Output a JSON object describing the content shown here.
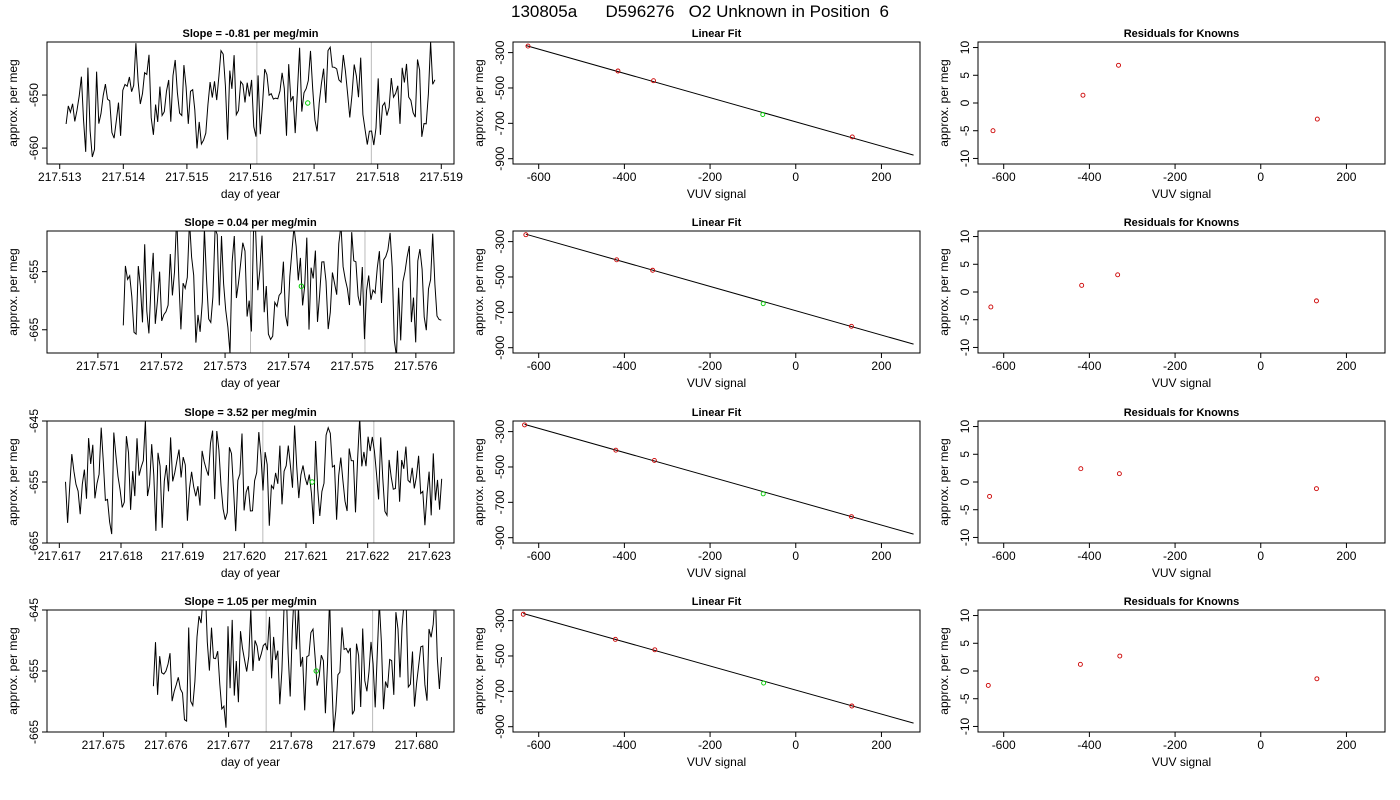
{
  "page": {
    "title": "130805a      D596276   O2 Unknown in Position  6"
  },
  "colors": {
    "trace": "#000000",
    "marker_unknown": "#00cc00",
    "marker_known": "#cc0000",
    "guide_line": "#bbbbbb",
    "axis": "#000000"
  },
  "chart_data": [
    {
      "type": "line",
      "title": "Slope =  -0.81  per meg/min",
      "xlabel": "day of year",
      "ylabel": "approx. per meg",
      "xlim": [
        217.5128,
        217.5192
      ],
      "ylim": [
        -663,
        -640
      ],
      "xticks": [
        217.513,
        217.514,
        217.515,
        217.516,
        217.517,
        217.518,
        217.519
      ],
      "xtick_decimals": 3,
      "yticks": [
        -650,
        -660
      ],
      "ytick_labels": [
        "-650",
        "-660"
      ],
      "vlines": [
        217.5161,
        217.5179
      ],
      "marker": {
        "x": 217.5169,
        "y": -651.5
      },
      "trace": {
        "x_start": 217.5131,
        "x_end": 217.5189,
        "mean": -650,
        "amplitude": 11,
        "seed": 11,
        "points": 170
      }
    },
    {
      "type": "scatter",
      "title": "Linear Fit",
      "xlabel": "VUV signal",
      "ylabel": "approx. per meg",
      "xlim": [
        -660,
        290
      ],
      "ylim": [
        -930,
        -240
      ],
      "xticks": [
        -600,
        -400,
        -200,
        0,
        200
      ],
      "xtick_labels": [
        "-600",
        "-400",
        "-200",
        "0",
        "200"
      ],
      "yticks": [
        -300,
        -500,
        -700,
        -900
      ],
      "ytick_labels": [
        "-300",
        "-500",
        "-700",
        "-900"
      ],
      "known_points": [
        [
          -625,
          -263
        ],
        [
          -415,
          -404
        ],
        [
          -332,
          -459
        ],
        [
          132,
          -777
        ]
      ],
      "unknown_point": [
        -77,
        -650
      ],
      "fit_line": {
        "x1": -630,
        "y1": -260,
        "x2": 275,
        "y2": -880
      }
    },
    {
      "type": "scatter",
      "title": "Residuals for Knowns",
      "xlabel": "VUV signal",
      "ylabel": "approx. per meg",
      "xlim": [
        -660,
        290
      ],
      "ylim": [
        -11,
        11
      ],
      "xticks": [
        -600,
        -400,
        -200,
        0,
        200
      ],
      "xtick_labels": [
        "-600",
        "-400",
        "-200",
        "0",
        "200"
      ],
      "yticks": [
        10,
        5,
        0,
        -5,
        -10
      ],
      "ytick_labels": [
        "10",
        "5",
        "0",
        "-5",
        "-10"
      ],
      "points": [
        [
          -625,
          -5
        ],
        [
          -415,
          1.4
        ],
        [
          -332,
          6.8
        ],
        [
          132,
          -2.9
        ]
      ]
    },
    {
      "type": "line",
      "title": "Slope =  0.04  per meg/min",
      "xlabel": "day of year",
      "ylabel": "approx. per meg",
      "xlim": [
        217.5702,
        217.5766
      ],
      "ylim": [
        -669,
        -648
      ],
      "xticks": [
        217.571,
        217.572,
        217.573,
        217.574,
        217.575,
        217.576
      ],
      "xtick_decimals": 3,
      "yticks": [
        -655,
        -665
      ],
      "ytick_labels": [
        "-655",
        "-665"
      ],
      "vlines": [
        217.5734,
        217.5752
      ],
      "marker": {
        "x": 217.5742,
        "y": -657.5
      },
      "trace": {
        "x_start": 217.5714,
        "x_end": 217.5764,
        "mean": -657,
        "amplitude": 13,
        "seed": 23,
        "points": 150
      }
    },
    {
      "type": "scatter",
      "title": "Linear Fit",
      "xlabel": "VUV signal",
      "ylabel": "approx. per meg",
      "xlim": [
        -660,
        290
      ],
      "ylim": [
        -930,
        -240
      ],
      "xticks": [
        -600,
        -400,
        -200,
        0,
        200
      ],
      "xtick_labels": [
        "-600",
        "-400",
        "-200",
        "0",
        "200"
      ],
      "yticks": [
        -300,
        -500,
        -700,
        -900
      ],
      "ytick_labels": [
        "-300",
        "-500",
        "-700",
        "-900"
      ],
      "known_points": [
        [
          -630,
          -261
        ],
        [
          -418,
          -403
        ],
        [
          -334,
          -462
        ],
        [
          130,
          -779
        ]
      ],
      "unknown_point": [
        -76,
        -651
      ],
      "fit_line": {
        "x1": -630,
        "y1": -258,
        "x2": 275,
        "y2": -880
      }
    },
    {
      "type": "scatter",
      "title": "Residuals for Knowns",
      "xlabel": "VUV signal",
      "ylabel": "approx. per meg",
      "xlim": [
        -660,
        290
      ],
      "ylim": [
        -11,
        11
      ],
      "xticks": [
        -600,
        -400,
        -200,
        0,
        200
      ],
      "xtick_labels": [
        "-600",
        "-400",
        "-200",
        "0",
        "200"
      ],
      "yticks": [
        10,
        5,
        0,
        -5,
        -10
      ],
      "ytick_labels": [
        "10",
        "5",
        "0",
        "-5",
        "-10"
      ],
      "points": [
        [
          -630,
          -2.7
        ],
        [
          -418,
          1.2
        ],
        [
          -334,
          3.1
        ],
        [
          130,
          -1.6
        ]
      ]
    },
    {
      "type": "line",
      "title": "Slope =  3.52  per meg/min",
      "xlabel": "day of year",
      "ylabel": "approx. per meg",
      "xlim": [
        217.6168,
        217.6234
      ],
      "ylim": [
        -665,
        -645
      ],
      "xticks": [
        217.617,
        217.618,
        217.619,
        217.62,
        217.621,
        217.622,
        217.623
      ],
      "xtick_decimals": 3,
      "yticks": [
        -645,
        -655,
        -665
      ],
      "ytick_labels": [
        "-645",
        "-655",
        "-665"
      ],
      "vlines": [
        217.6203,
        217.6221
      ],
      "marker": {
        "x": 217.6211,
        "y": -655
      },
      "trace": {
        "x_start": 217.6171,
        "x_end": 217.6232,
        "mean": -654,
        "amplitude": 11,
        "seed": 37,
        "points": 180
      }
    },
    {
      "type": "scatter",
      "title": "Linear Fit",
      "xlabel": "VUV signal",
      "ylabel": "approx. per meg",
      "xlim": [
        -660,
        290
      ],
      "ylim": [
        -930,
        -240
      ],
      "xticks": [
        -600,
        -400,
        -200,
        0,
        200
      ],
      "xtick_labels": [
        "-600",
        "-400",
        "-200",
        "0",
        "200"
      ],
      "yticks": [
        -300,
        -500,
        -700,
        -900
      ],
      "ytick_labels": [
        "-300",
        "-500",
        "-700",
        "-900"
      ],
      "known_points": [
        [
          -633,
          -262
        ],
        [
          -420,
          -405
        ],
        [
          -330,
          -463
        ],
        [
          130,
          -781
        ]
      ],
      "unknown_point": [
        -76,
        -652
      ],
      "fit_line": {
        "x1": -633,
        "y1": -259,
        "x2": 275,
        "y2": -880
      }
    },
    {
      "type": "scatter",
      "title": "Residuals for Knowns",
      "xlabel": "VUV signal",
      "ylabel": "approx. per meg",
      "xlim": [
        -660,
        290
      ],
      "ylim": [
        -11,
        11
      ],
      "xticks": [
        -600,
        -400,
        -200,
        0,
        200
      ],
      "xtick_labels": [
        "-600",
        "-400",
        "-200",
        "0",
        "200"
      ],
      "yticks": [
        10,
        5,
        0,
        -5,
        -10
      ],
      "ytick_labels": [
        "10",
        "5",
        "0",
        "-5",
        "-10"
      ],
      "points": [
        [
          -633,
          -2.6
        ],
        [
          -420,
          2.4
        ],
        [
          -330,
          1.5
        ],
        [
          130,
          -1.2
        ]
      ]
    },
    {
      "type": "line",
      "title": "Slope =  1.05  per meg/min",
      "xlabel": "day of year",
      "ylabel": "approx. per meg",
      "xlim": [
        217.6741,
        217.6806
      ],
      "ylim": [
        -665,
        -645
      ],
      "xticks": [
        217.675,
        217.676,
        217.677,
        217.678,
        217.679,
        217.68
      ],
      "xtick_decimals": 3,
      "yticks": [
        -645,
        -655,
        -665
      ],
      "ytick_labels": [
        "-645",
        "-655",
        "-665"
      ],
      "vlines": [
        217.6776,
        217.6793
      ],
      "marker": {
        "x": 217.6784,
        "y": -655
      },
      "trace": {
        "x_start": 217.6758,
        "x_end": 217.6804,
        "mean": -653,
        "amplitude": 12,
        "seed": 53,
        "points": 140
      }
    },
    {
      "type": "scatter",
      "title": "Linear Fit",
      "xlabel": "VUV signal",
      "ylabel": "approx. per meg",
      "xlim": [
        -660,
        290
      ],
      "ylim": [
        -930,
        -240
      ],
      "xticks": [
        -600,
        -400,
        -200,
        0,
        200
      ],
      "xtick_labels": [
        "-600",
        "-400",
        "-200",
        "0",
        "200"
      ],
      "yticks": [
        -300,
        -500,
        -700,
        -900
      ],
      "ytick_labels": [
        "-300",
        "-500",
        "-700",
        "-900"
      ],
      "known_points": [
        [
          -636,
          -264
        ],
        [
          -421,
          -406
        ],
        [
          -329,
          -465
        ],
        [
          131,
          -783
        ]
      ],
      "unknown_point": [
        -75,
        -653
      ],
      "fit_line": {
        "x1": -636,
        "y1": -260,
        "x2": 275,
        "y2": -880
      }
    },
    {
      "type": "scatter",
      "title": "Residuals for Knowns",
      "xlabel": "VUV signal",
      "ylabel": "approx. per meg",
      "xlim": [
        -660,
        290
      ],
      "ylim": [
        -11,
        11
      ],
      "xticks": [
        -600,
        -400,
        -200,
        0,
        200
      ],
      "xtick_labels": [
        "-600",
        "-400",
        "-200",
        "0",
        "200"
      ],
      "yticks": [
        10,
        5,
        0,
        -5,
        -10
      ],
      "ytick_labels": [
        "10",
        "5",
        "0",
        "-5",
        "-10"
      ],
      "points": [
        [
          -636,
          -2.6
        ],
        [
          -421,
          1.2
        ],
        [
          -329,
          2.7
        ],
        [
          131,
          -1.4
        ]
      ]
    }
  ]
}
